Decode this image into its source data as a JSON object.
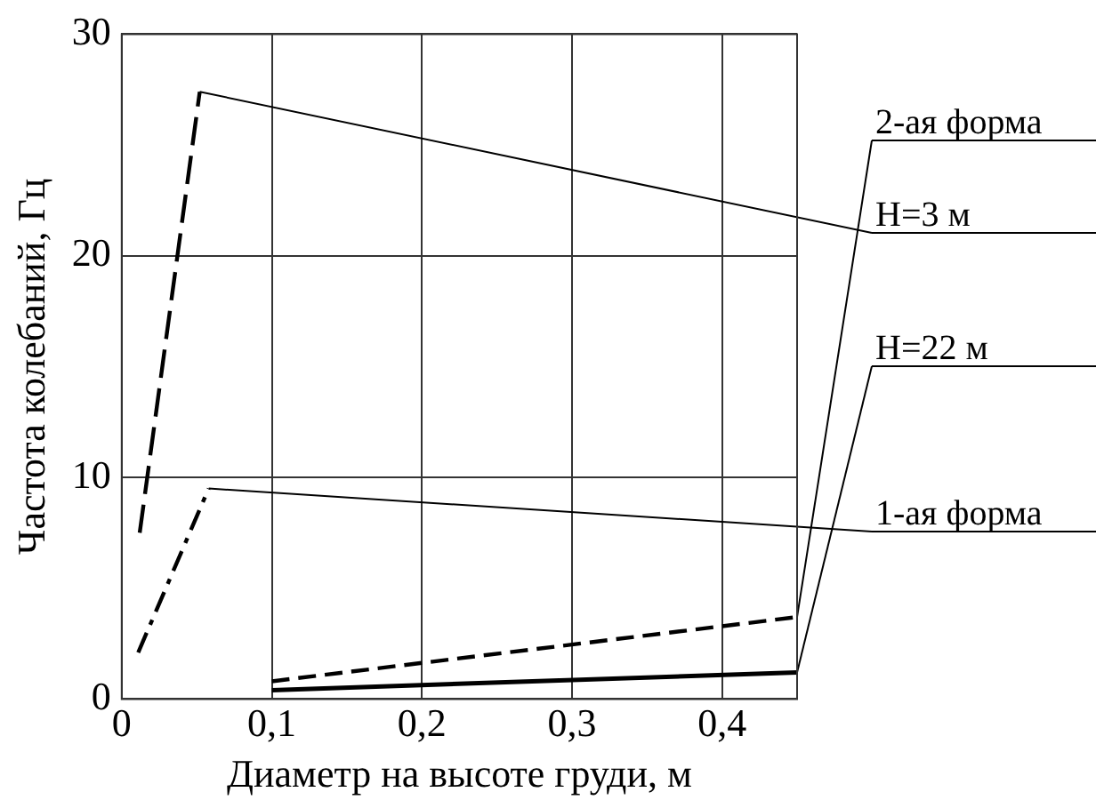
{
  "chart_data": {
    "type": "line",
    "xlabel": "Диаметр на высоте груди, м",
    "ylabel": "Частота колебаний, Гц",
    "xlim": [
      0,
      0.45
    ],
    "xticks": [
      {
        "value": 0,
        "label": "0"
      },
      {
        "value": 0.1,
        "label": "0,1"
      },
      {
        "value": 0.2,
        "label": "0,2"
      },
      {
        "value": 0.3,
        "label": "0,3"
      },
      {
        "value": 0.4,
        "label": "0,4"
      }
    ],
    "ylim": [
      0,
      30
    ],
    "yticks": [
      0,
      10,
      20,
      30
    ],
    "grid": true,
    "legend": false,
    "marker": "none",
    "series": [
      {
        "color": "#000000",
        "line_style": "dashed",
        "x": [
          0.012,
          0.052
        ],
        "values": [
          7.5,
          27.4
        ]
      },
      {
        "color": "#000000",
        "line_style": "dashed",
        "x": [
          0.011,
          0.058
        ],
        "values": [
          2.1,
          9.5
        ]
      },
      {
        "color": "#000000",
        "line_style": "dashed",
        "x": [
          0.1,
          0.45
        ],
        "values": [
          0.8,
          3.7
        ]
      },
      {
        "color": "#000000",
        "line_style": "solid",
        "x": [
          0.1,
          0.45
        ],
        "values": [
          0.4,
          1.2
        ]
      }
    ],
    "annotations": [
      {
        "text": "2-ая форма",
        "x": 0.45,
        "y": 3.7
      },
      {
        "text": "H=3 м",
        "x": 0.052,
        "y": 27.4
      },
      {
        "text": "H=22 м",
        "x": 0.45,
        "y": 1.2
      },
      {
        "text": "1-ая форма",
        "x": 0.058,
        "y": 9.5
      }
    ]
  }
}
